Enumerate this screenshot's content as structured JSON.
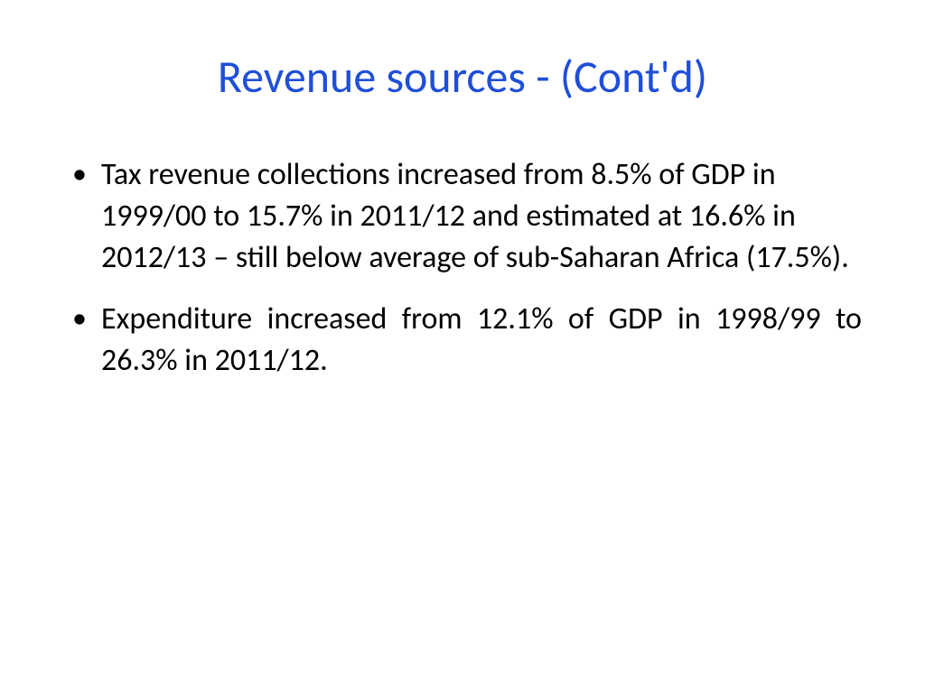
{
  "slide": {
    "title": "Revenue sources - (Cont'd)",
    "title_color": "#1f4fd8",
    "title_fontsize": 50,
    "title_fontweight": 400,
    "body_color": "#000000",
    "body_fontsize": 34,
    "background_color": "#ffffff",
    "bullets": [
      {
        "text": "Tax revenue collections increased from 8.5% of GDP in 1999/00  to 15.7% in 2011/12 and estimated at 16.6% in 2012/13 – still below average of sub-Saharan Africa (17.5%).",
        "justified": false
      },
      {
        "text": "Expenditure increased from 12.1% of GDP in 1998/99  to 26.3% in 2011/12.",
        "justified": true
      }
    ]
  }
}
